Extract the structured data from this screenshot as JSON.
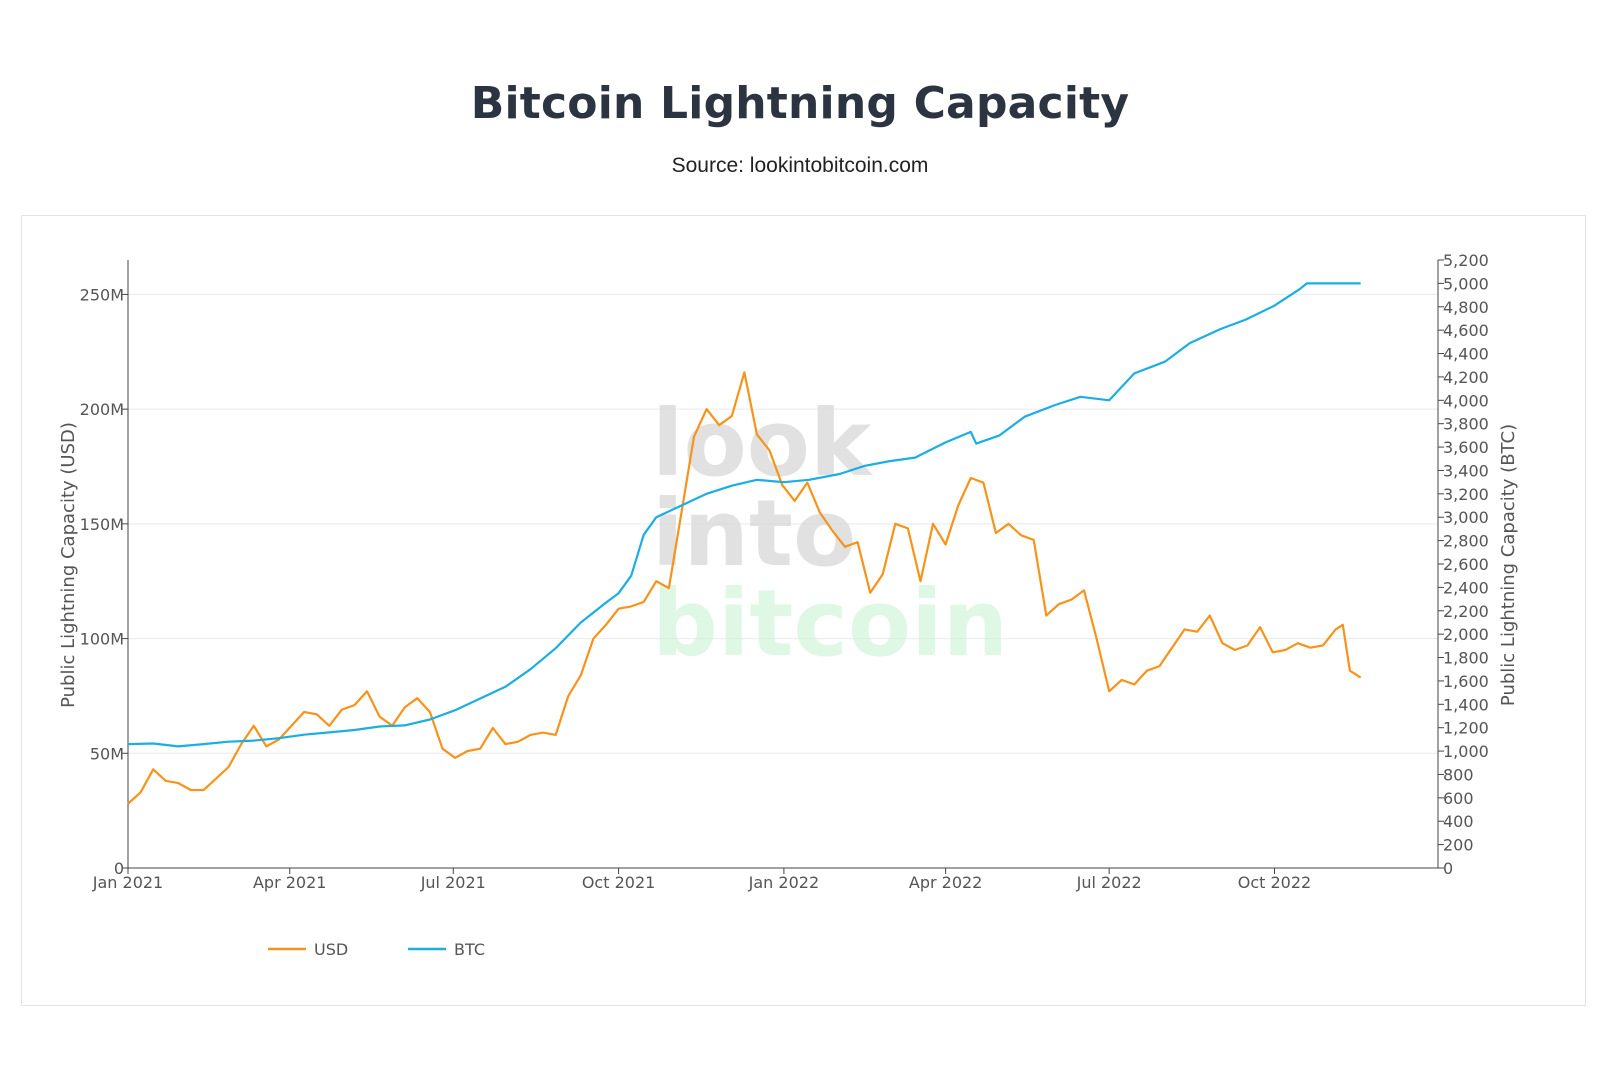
{
  "page": {
    "title": "Bitcoin Lightning Capacity",
    "subtitle": "Source: lookintobitcoin.com"
  },
  "watermark": {
    "line1": "look",
    "line2": "into",
    "line3": "bitcoin"
  },
  "chart_data": {
    "type": "line",
    "title": "Bitcoin Lightning Capacity",
    "subtitle": "Source: lookintobitcoin.com",
    "x_axis": {
      "type": "date",
      "range": [
        "2021-01-01",
        "2022-12-31"
      ],
      "ticks": [
        {
          "date": "2021-01-01",
          "label": "Jan 2021"
        },
        {
          "date": "2021-04-01",
          "label": "Apr 2021"
        },
        {
          "date": "2021-07-01",
          "label": "Jul 2021"
        },
        {
          "date": "2021-10-01",
          "label": "Oct 2021"
        },
        {
          "date": "2022-01-01",
          "label": "Jan 2022"
        },
        {
          "date": "2022-04-01",
          "label": "Apr 2022"
        },
        {
          "date": "2022-07-01",
          "label": "Jul 2022"
        },
        {
          "date": "2022-10-01",
          "label": "Oct 2022"
        }
      ]
    },
    "y_left": {
      "label": "Public Lightning Capacity (USD)",
      "range": [
        0,
        265000000
      ],
      "ticks": [
        {
          "value": 0,
          "label": "0"
        },
        {
          "value": 50000000,
          "label": "50M"
        },
        {
          "value": 100000000,
          "label": "100M"
        },
        {
          "value": 150000000,
          "label": "150M"
        },
        {
          "value": 200000000,
          "label": "200M"
        },
        {
          "value": 250000000,
          "label": "250M"
        }
      ],
      "grid": true
    },
    "y_right": {
      "label": "Public Lightning Capacity (BTC)",
      "range": [
        0,
        5200
      ],
      "ticks": [
        {
          "value": 0,
          "label": "0"
        },
        {
          "value": 200,
          "label": "200"
        },
        {
          "value": 400,
          "label": "400"
        },
        {
          "value": 600,
          "label": "600"
        },
        {
          "value": 800,
          "label": "800"
        },
        {
          "value": 1000,
          "label": "1,000"
        },
        {
          "value": 1200,
          "label": "1,200"
        },
        {
          "value": 1400,
          "label": "1,400"
        },
        {
          "value": 1600,
          "label": "1,600"
        },
        {
          "value": 1800,
          "label": "1,800"
        },
        {
          "value": 2000,
          "label": "2,000"
        },
        {
          "value": 2200,
          "label": "2,200"
        },
        {
          "value": 2400,
          "label": "2,400"
        },
        {
          "value": 2600,
          "label": "2,600"
        },
        {
          "value": 2800,
          "label": "2,800"
        },
        {
          "value": 3000,
          "label": "3,000"
        },
        {
          "value": 3200,
          "label": "3,200"
        },
        {
          "value": 3400,
          "label": "3,400"
        },
        {
          "value": 3600,
          "label": "3,600"
        },
        {
          "value": 3800,
          "label": "3,800"
        },
        {
          "value": 4000,
          "label": "4,000"
        },
        {
          "value": 4200,
          "label": "4,200"
        },
        {
          "value": 4400,
          "label": "4,400"
        },
        {
          "value": 4600,
          "label": "4,600"
        },
        {
          "value": 4800,
          "label": "4,800"
        },
        {
          "value": 5000,
          "label": "5,000"
        },
        {
          "value": 5200,
          "label": "5,200"
        }
      ]
    },
    "legend": {
      "placement": "bottom-left"
    },
    "series": [
      {
        "name": "USD",
        "axis": "left",
        "color": "#f7931a",
        "points": [
          [
            "2021-01-01",
            28000000
          ],
          [
            "2021-01-08",
            33000000
          ],
          [
            "2021-01-15",
            43000000
          ],
          [
            "2021-01-22",
            38000000
          ],
          [
            "2021-01-29",
            37000000
          ],
          [
            "2021-02-05",
            34000000
          ],
          [
            "2021-02-12",
            34000000
          ],
          [
            "2021-02-19",
            39000000
          ],
          [
            "2021-02-26",
            44000000
          ],
          [
            "2021-03-05",
            54000000
          ],
          [
            "2021-03-12",
            62000000
          ],
          [
            "2021-03-19",
            53000000
          ],
          [
            "2021-03-26",
            56000000
          ],
          [
            "2021-04-02",
            62000000
          ],
          [
            "2021-04-09",
            68000000
          ],
          [
            "2021-04-16",
            67000000
          ],
          [
            "2021-04-23",
            62000000
          ],
          [
            "2021-04-30",
            69000000
          ],
          [
            "2021-05-07",
            71000000
          ],
          [
            "2021-05-14",
            77000000
          ],
          [
            "2021-05-21",
            66000000
          ],
          [
            "2021-05-28",
            62000000
          ],
          [
            "2021-06-04",
            70000000
          ],
          [
            "2021-06-11",
            74000000
          ],
          [
            "2021-06-18",
            68000000
          ],
          [
            "2021-06-25",
            52000000
          ],
          [
            "2021-07-02",
            48000000
          ],
          [
            "2021-07-09",
            51000000
          ],
          [
            "2021-07-16",
            52000000
          ],
          [
            "2021-07-23",
            61000000
          ],
          [
            "2021-07-30",
            54000000
          ],
          [
            "2021-08-06",
            55000000
          ],
          [
            "2021-08-13",
            58000000
          ],
          [
            "2021-08-20",
            59000000
          ],
          [
            "2021-08-27",
            58000000
          ],
          [
            "2021-09-03",
            75000000
          ],
          [
            "2021-09-10",
            84000000
          ],
          [
            "2021-09-17",
            100000000
          ],
          [
            "2021-09-24",
            106000000
          ],
          [
            "2021-10-01",
            113000000
          ],
          [
            "2021-10-08",
            114000000
          ],
          [
            "2021-10-15",
            116000000
          ],
          [
            "2021-10-22",
            125000000
          ],
          [
            "2021-10-29",
            122000000
          ],
          [
            "2021-11-05",
            155000000
          ],
          [
            "2021-11-12",
            188000000
          ],
          [
            "2021-11-19",
            200000000
          ],
          [
            "2021-11-26",
            193000000
          ],
          [
            "2021-12-03",
            197000000
          ],
          [
            "2021-12-10",
            216000000
          ],
          [
            "2021-12-17",
            189000000
          ],
          [
            "2021-12-24",
            182000000
          ],
          [
            "2021-12-31",
            167000000
          ],
          [
            "2022-01-07",
            160000000
          ],
          [
            "2022-01-14",
            168000000
          ],
          [
            "2022-01-21",
            155000000
          ],
          [
            "2022-01-28",
            147000000
          ],
          [
            "2022-02-04",
            140000000
          ],
          [
            "2022-02-11",
            142000000
          ],
          [
            "2022-02-18",
            120000000
          ],
          [
            "2022-02-25",
            128000000
          ],
          [
            "2022-03-04",
            150000000
          ],
          [
            "2022-03-11",
            148000000
          ],
          [
            "2022-03-18",
            125000000
          ],
          [
            "2022-03-25",
            150000000
          ],
          [
            "2022-04-01",
            141000000
          ],
          [
            "2022-04-08",
            158000000
          ],
          [
            "2022-04-15",
            170000000
          ],
          [
            "2022-04-22",
            168000000
          ],
          [
            "2022-04-29",
            146000000
          ],
          [
            "2022-05-06",
            150000000
          ],
          [
            "2022-05-13",
            145000000
          ],
          [
            "2022-05-20",
            143000000
          ],
          [
            "2022-05-27",
            110000000
          ],
          [
            "2022-06-03",
            115000000
          ],
          [
            "2022-06-10",
            117000000
          ],
          [
            "2022-06-17",
            121000000
          ],
          [
            "2022-06-24",
            100000000
          ],
          [
            "2022-07-01",
            77000000
          ],
          [
            "2022-07-08",
            82000000
          ],
          [
            "2022-07-15",
            80000000
          ],
          [
            "2022-07-22",
            86000000
          ],
          [
            "2022-07-29",
            88000000
          ],
          [
            "2022-08-05",
            96000000
          ],
          [
            "2022-08-12",
            104000000
          ],
          [
            "2022-08-19",
            103000000
          ],
          [
            "2022-08-26",
            110000000
          ],
          [
            "2022-09-02",
            98000000
          ],
          [
            "2022-09-09",
            95000000
          ],
          [
            "2022-09-16",
            97000000
          ],
          [
            "2022-09-23",
            105000000
          ],
          [
            "2022-09-30",
            94000000
          ],
          [
            "2022-10-07",
            95000000
          ],
          [
            "2022-10-14",
            98000000
          ],
          [
            "2022-10-21",
            96000000
          ],
          [
            "2022-10-28",
            97000000
          ],
          [
            "2022-11-04",
            104000000
          ],
          [
            "2022-11-08",
            106000000
          ],
          [
            "2022-11-12",
            86000000
          ],
          [
            "2022-11-18",
            83000000
          ]
        ]
      },
      {
        "name": "BTC",
        "axis": "right",
        "color": "#1aaee5",
        "points": [
          [
            "2021-01-01",
            1060
          ],
          [
            "2021-01-15",
            1065
          ],
          [
            "2021-01-29",
            1040
          ],
          [
            "2021-02-12",
            1060
          ],
          [
            "2021-02-26",
            1080
          ],
          [
            "2021-03-12",
            1090
          ],
          [
            "2021-03-26",
            1110
          ],
          [
            "2021-04-09",
            1140
          ],
          [
            "2021-04-23",
            1160
          ],
          [
            "2021-05-07",
            1180
          ],
          [
            "2021-05-21",
            1210
          ],
          [
            "2021-06-04",
            1220
          ],
          [
            "2021-06-18",
            1270
          ],
          [
            "2021-07-02",
            1350
          ],
          [
            "2021-07-16",
            1450
          ],
          [
            "2021-07-30",
            1550
          ],
          [
            "2021-08-13",
            1700
          ],
          [
            "2021-08-27",
            1880
          ],
          [
            "2021-09-10",
            2100
          ],
          [
            "2021-09-24",
            2270
          ],
          [
            "2021-10-01",
            2350
          ],
          [
            "2021-10-08",
            2500
          ],
          [
            "2021-10-15",
            2850
          ],
          [
            "2021-10-22",
            3000
          ],
          [
            "2021-11-05",
            3100
          ],
          [
            "2021-11-19",
            3200
          ],
          [
            "2021-12-03",
            3270
          ],
          [
            "2021-12-17",
            3320
          ],
          [
            "2022-01-01",
            3300
          ],
          [
            "2022-01-15",
            3320
          ],
          [
            "2022-02-01",
            3370
          ],
          [
            "2022-02-15",
            3440
          ],
          [
            "2022-03-01",
            3480
          ],
          [
            "2022-03-15",
            3510
          ],
          [
            "2022-04-01",
            3640
          ],
          [
            "2022-04-15",
            3730
          ],
          [
            "2022-04-18",
            3630
          ],
          [
            "2022-05-01",
            3700
          ],
          [
            "2022-05-15",
            3860
          ],
          [
            "2022-06-01",
            3960
          ],
          [
            "2022-06-15",
            4030
          ],
          [
            "2022-07-01",
            4000
          ],
          [
            "2022-07-15",
            4230
          ],
          [
            "2022-08-01",
            4330
          ],
          [
            "2022-08-15",
            4490
          ],
          [
            "2022-09-01",
            4610
          ],
          [
            "2022-09-15",
            4690
          ],
          [
            "2022-10-01",
            4810
          ],
          [
            "2022-10-15",
            4950
          ],
          [
            "2022-10-19",
            5000
          ],
          [
            "2022-11-18",
            5000
          ]
        ]
      }
    ]
  }
}
